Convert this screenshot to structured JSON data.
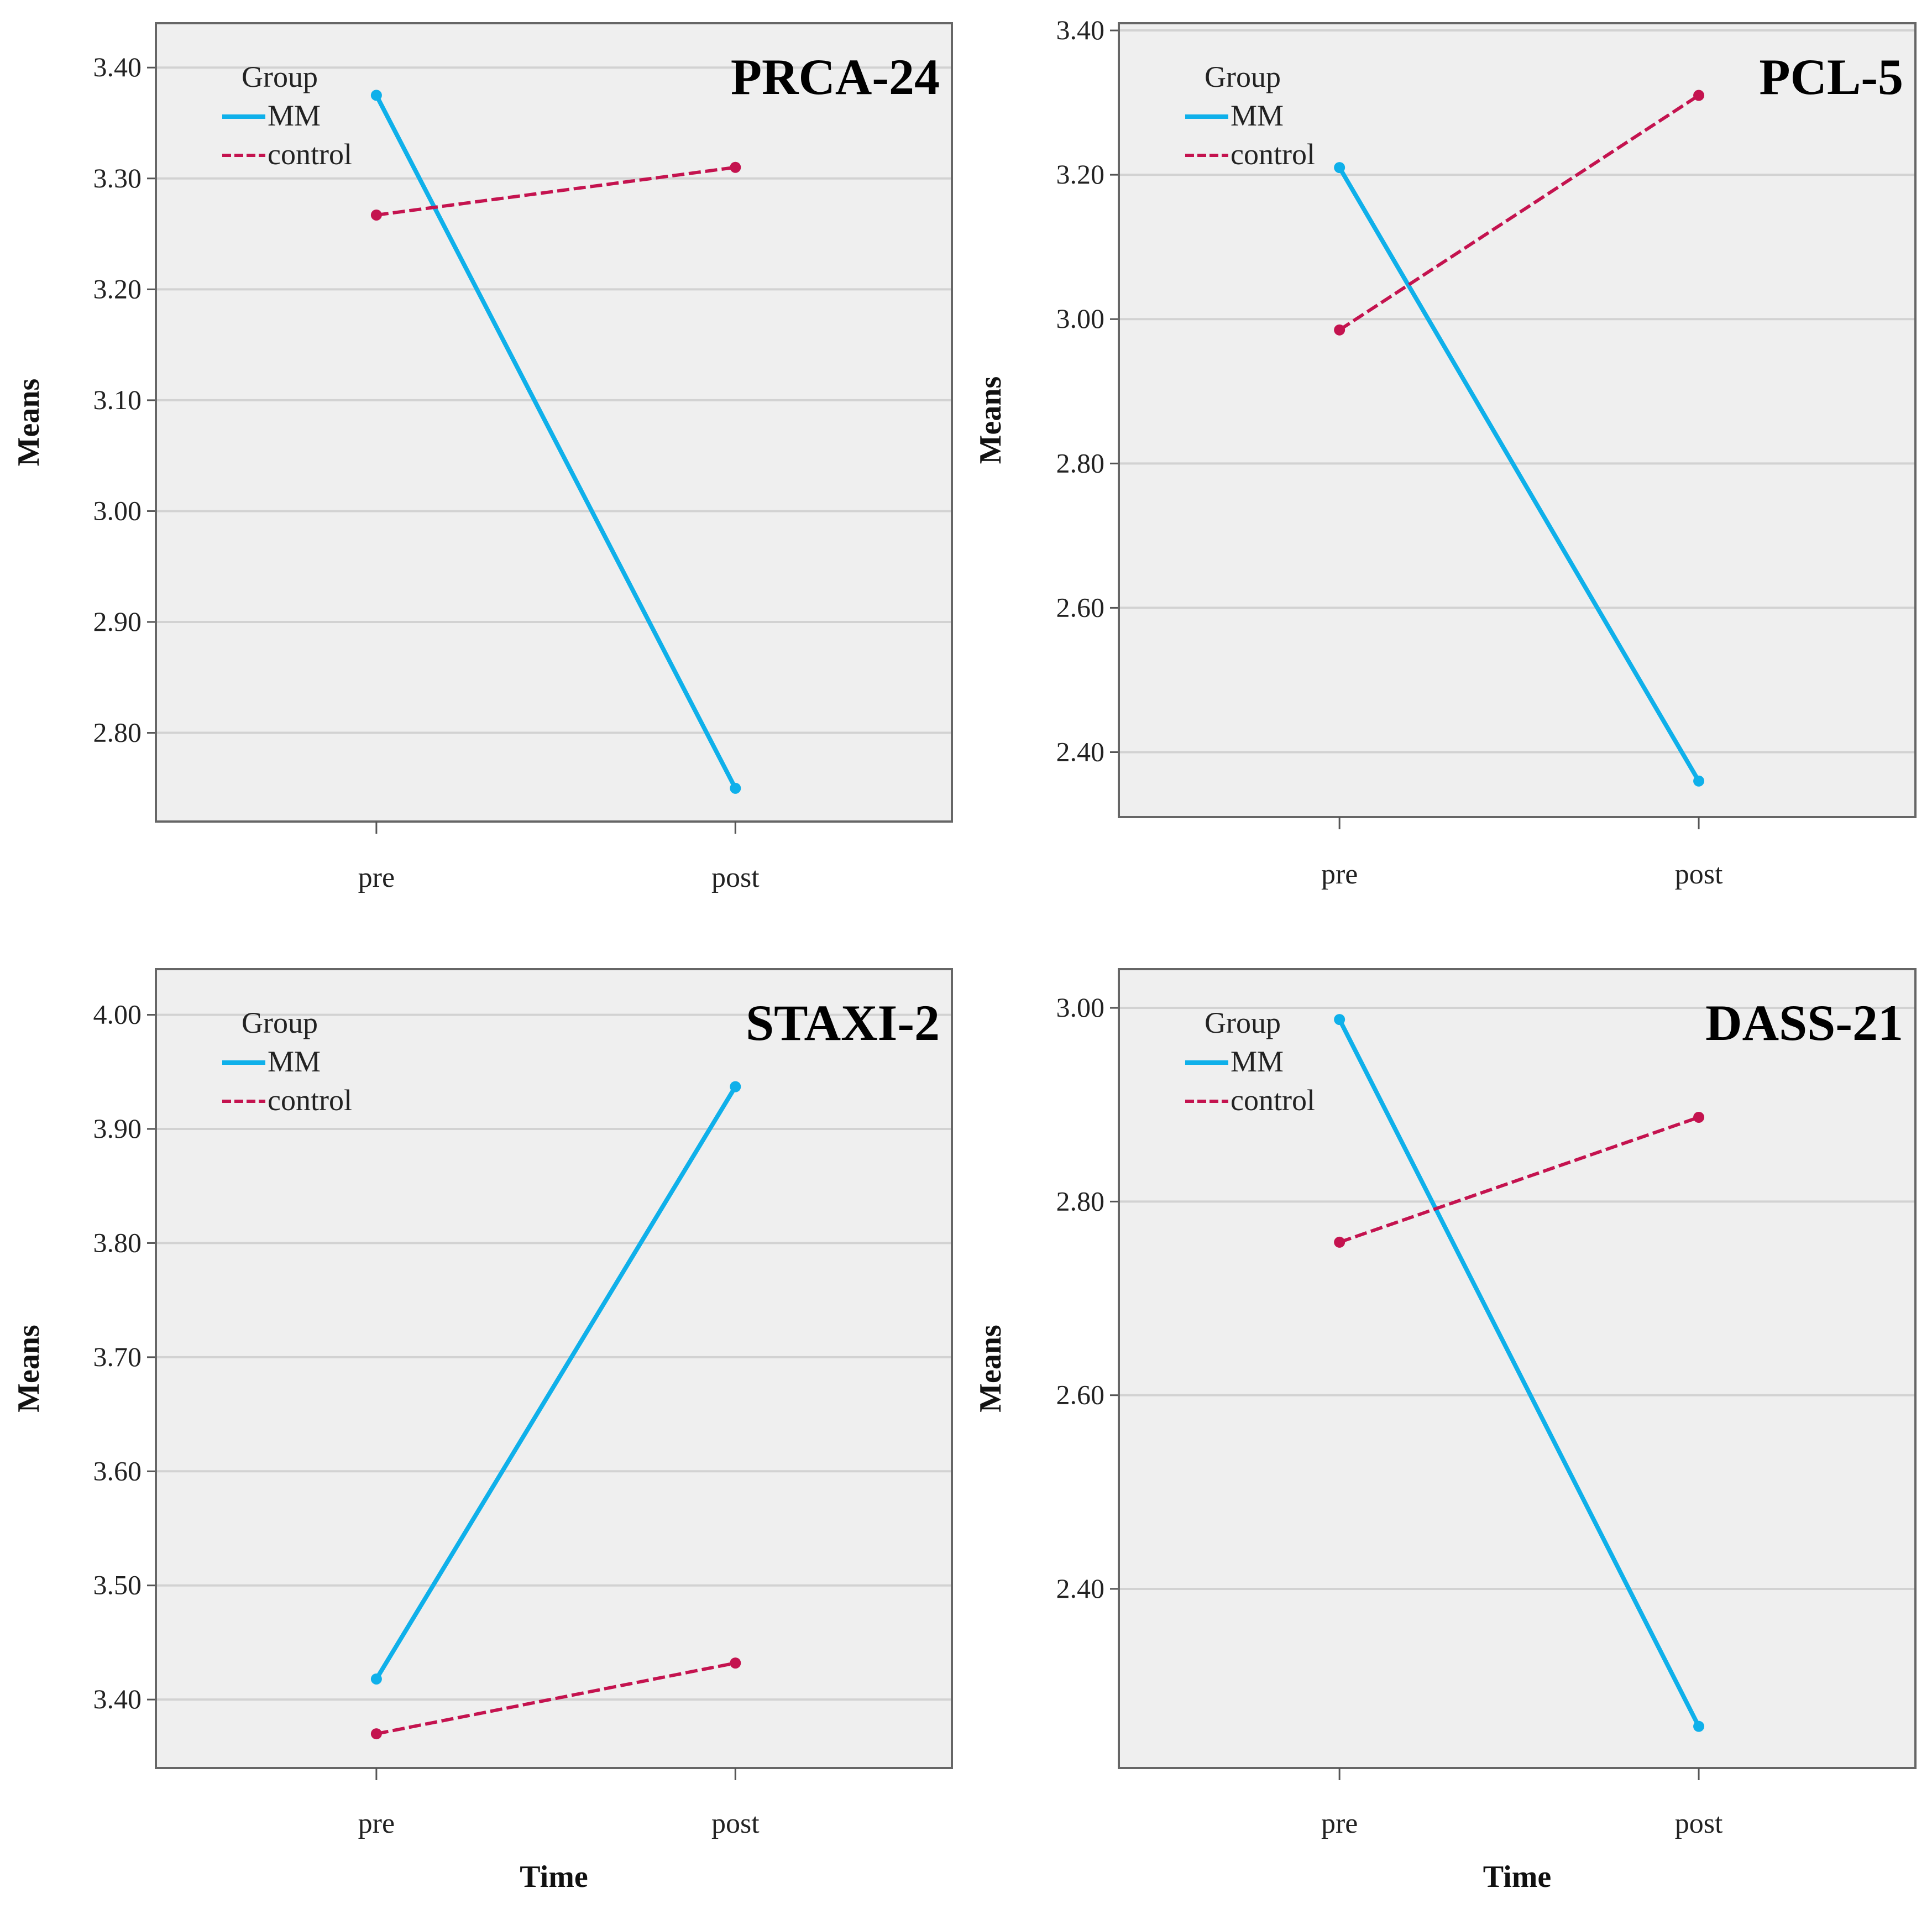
{
  "chart_data": [
    {
      "type": "line",
      "title": "PRCA-24",
      "xlabel": "",
      "ylabel": "Means",
      "categories": [
        "pre",
        "post"
      ],
      "ylim": [
        2.72,
        3.44
      ],
      "yticks": [
        "2.80",
        "2.90",
        "3.00",
        "3.10",
        "3.20",
        "3.30",
        "3.40"
      ],
      "grid": true,
      "legend": {
        "title": "Group",
        "placement": "top-left"
      },
      "series": [
        {
          "name": "MM",
          "color": "#0fb0ea",
          "dash": "solid",
          "values": [
            3.375,
            2.75
          ]
        },
        {
          "name": "control",
          "color": "#c4134f",
          "dash": "dashed",
          "values": [
            3.267,
            3.31
          ]
        }
      ]
    },
    {
      "type": "line",
      "title": "PCL-5",
      "xlabel": "",
      "ylabel": "Means",
      "categories": [
        "pre",
        "post"
      ],
      "ylim": [
        2.31,
        3.41
      ],
      "yticks": [
        "2.40",
        "2.60",
        "2.80",
        "3.00",
        "3.20",
        "3.40"
      ],
      "grid": true,
      "legend": {
        "title": "Group",
        "placement": "top-left"
      },
      "series": [
        {
          "name": "MM",
          "color": "#0fb0ea",
          "dash": "solid",
          "values": [
            3.21,
            2.36
          ]
        },
        {
          "name": "control",
          "color": "#c4134f",
          "dash": "dashed",
          "values": [
            2.985,
            3.31
          ]
        }
      ]
    },
    {
      "type": "line",
      "title": "STAXI-2",
      "xlabel": "Time",
      "ylabel": "Means",
      "categories": [
        "pre",
        "post"
      ],
      "ylim": [
        3.34,
        4.04
      ],
      "yticks": [
        "3.40",
        "3.50",
        "3.60",
        "3.70",
        "3.80",
        "3.90",
        "4.00"
      ],
      "grid": true,
      "legend": {
        "title": "Group",
        "placement": "top-left"
      },
      "series": [
        {
          "name": "MM",
          "color": "#0fb0ea",
          "dash": "solid",
          "values": [
            3.418,
            3.937
          ]
        },
        {
          "name": "control",
          "color": "#c4134f",
          "dash": "dashed",
          "values": [
            3.37,
            3.432
          ]
        }
      ]
    },
    {
      "type": "line",
      "title": "DASS-21",
      "xlabel": "Time",
      "ylabel": "Means",
      "categories": [
        "pre",
        "post"
      ],
      "ylim": [
        2.215,
        3.04
      ],
      "yticks": [
        "2.40",
        "2.60",
        "2.80",
        "3.00"
      ],
      "grid": true,
      "legend": {
        "title": "Group",
        "placement": "top-left"
      },
      "series": [
        {
          "name": "MM",
          "color": "#0fb0ea",
          "dash": "solid",
          "values": [
            2.988,
            2.258
          ]
        },
        {
          "name": "control",
          "color": "#c4134f",
          "dash": "dashed",
          "values": [
            2.758,
            2.887
          ]
        }
      ]
    }
  ]
}
